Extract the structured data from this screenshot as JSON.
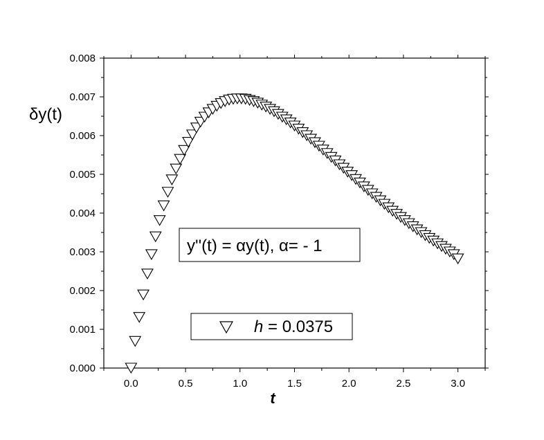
{
  "chart_data": {
    "type": "scatter",
    "title": "",
    "xlabel": "t",
    "ylabel": "δy(t)",
    "xlim": [
      -0.25,
      3.25
    ],
    "ylim": [
      0,
      0.008
    ],
    "xticks": [
      "0.0",
      "0.5",
      "1.0",
      "1.5",
      "2.0",
      "2.5",
      "3.0"
    ],
    "yticks": [
      "0.000",
      "0.001",
      "0.002",
      "0.003",
      "0.004",
      "0.005",
      "0.006",
      "0.007",
      "0.008"
    ],
    "grid": false,
    "equation_box": "y''(t) = αy(t), α= - 1",
    "legend": {
      "placement": "bottom-center",
      "entries": [
        {
          "marker": "triangle-down",
          "symbol": "h",
          "text": " = 0.0375"
        }
      ]
    },
    "series": [
      {
        "marker": "triangle-down",
        "x": [
          0,
          0.0375,
          0.075,
          0.1125,
          0.15,
          0.1875,
          0.225,
          0.2625,
          0.3,
          0.3375,
          0.375,
          0.4125,
          0.45,
          0.4875,
          0.525,
          0.5625,
          0.6,
          0.6375,
          0.675,
          0.7125,
          0.75,
          0.7875,
          0.825,
          0.8625,
          0.9,
          0.9375,
          0.975,
          1.0125,
          1.05,
          1.0875,
          1.125,
          1.1625,
          1.2,
          1.2375,
          1.275,
          1.3125,
          1.35,
          1.3875,
          1.425,
          1.4625,
          1.5,
          1.5375,
          1.575,
          1.6125,
          1.65,
          1.6875,
          1.725,
          1.7625,
          1.8,
          1.8375,
          1.875,
          1.9125,
          1.95,
          1.9875,
          2.025,
          2.0625,
          2.1,
          2.1375,
          2.175,
          2.2125,
          2.25,
          2.2875,
          2.325,
          2.3625,
          2.4,
          2.4375,
          2.475,
          2.5125,
          2.55,
          2.5875,
          2.625,
          2.6625,
          2.7,
          2.7375,
          2.775,
          2.8125,
          2.85,
          2.8875,
          2.925,
          2.9625,
          3.0
        ],
        "y": [
          0,
          0.00069,
          0.00131,
          0.00189,
          0.00243,
          0.00293,
          0.00339,
          0.00381,
          0.00419,
          0.00454,
          0.00486,
          0.00514,
          0.00539,
          0.00562,
          0.00583,
          0.00602,
          0.0062,
          0.00635,
          0.00648,
          0.00659,
          0.00668,
          0.00676,
          0.00683,
          0.00688,
          0.00692,
          0.00694,
          0.00695,
          0.00695,
          0.00694,
          0.00691,
          0.00688,
          0.00684,
          0.00679,
          0.00674,
          0.00668,
          0.00662,
          0.00655,
          0.00648,
          0.00641,
          0.00633,
          0.00625,
          0.00617,
          0.00608,
          0.006,
          0.00591,
          0.00582,
          0.00573,
          0.00563,
          0.00554,
          0.00544,
          0.00535,
          0.00525,
          0.00516,
          0.00506,
          0.00497,
          0.00487,
          0.00478,
          0.00468,
          0.00459,
          0.0045,
          0.00441,
          0.00432,
          0.00423,
          0.00414,
          0.00405,
          0.00397,
          0.00389,
          0.00381,
          0.00373,
          0.00365,
          0.00357,
          0.0035,
          0.00342,
          0.00335,
          0.00328,
          0.00321,
          0.00314,
          0.00307,
          0.003,
          0.00293,
          0.00282
        ]
      }
    ]
  }
}
